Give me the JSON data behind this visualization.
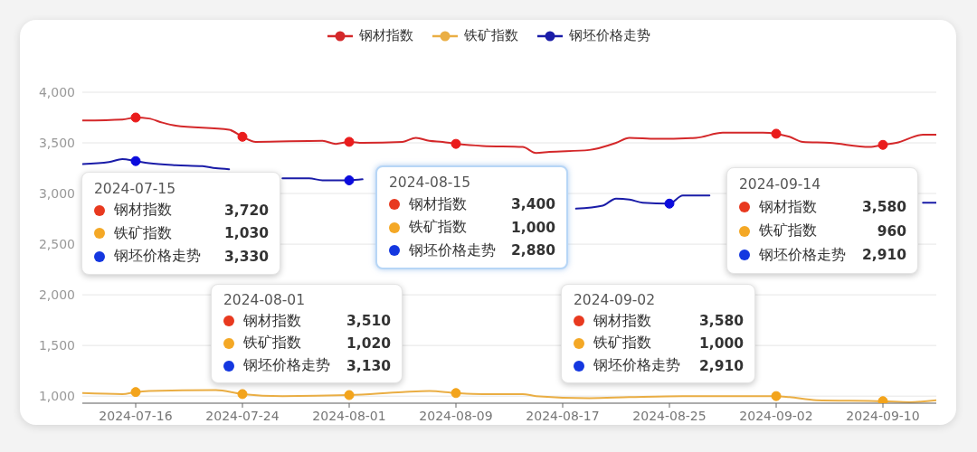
{
  "chart_data": {
    "type": "line",
    "xlim": [
      "2024-07-12",
      "2024-09-14"
    ],
    "xticks": [
      "2024-07-16",
      "2024-07-24",
      "2024-08-01",
      "2024-08-09",
      "2024-08-17",
      "2024-08-25",
      "2024-09-02",
      "2024-09-10"
    ],
    "ylim": [
      930,
      4000
    ],
    "yticks": [
      {
        "value": 1000,
        "label": "1,000"
      },
      {
        "value": 1500,
        "label": "1,500"
      },
      {
        "value": 2000,
        "label": "2,000"
      },
      {
        "value": 2500,
        "label": "2,500"
      },
      {
        "value": 3000,
        "label": "3,000"
      },
      {
        "value": 3500,
        "label": "3,500"
      },
      {
        "value": 4000,
        "label": "4,000"
      }
    ],
    "grid": "y",
    "legend": "top",
    "series": [
      {
        "name": "钢材指数",
        "color": "#d4282a",
        "x": [
          "2024-07-12",
          "2024-07-15",
          "2024-07-16",
          "2024-07-17",
          "2024-07-18",
          "2024-07-19",
          "2024-07-23",
          "2024-07-24",
          "2024-07-25",
          "2024-07-30",
          "2024-07-31",
          "2024-08-01",
          "2024-08-02",
          "2024-08-05",
          "2024-08-06",
          "2024-08-07",
          "2024-08-08",
          "2024-08-09",
          "2024-08-11",
          "2024-08-14",
          "2024-08-15",
          "2024-08-16",
          "2024-08-19",
          "2024-08-21",
          "2024-08-22",
          "2024-08-24",
          "2024-08-27",
          "2024-08-29",
          "2024-09-01",
          "2024-09-02",
          "2024-09-03",
          "2024-09-04",
          "2024-09-06",
          "2024-09-09",
          "2024-09-10",
          "2024-09-11",
          "2024-09-13",
          "2024-09-14"
        ],
        "values": [
          3720,
          3730,
          3750,
          3740,
          3700,
          3670,
          3630,
          3560,
          3510,
          3520,
          3490,
          3510,
          3500,
          3510,
          3550,
          3520,
          3510,
          3490,
          3470,
          3460,
          3400,
          3410,
          3430,
          3500,
          3550,
          3540,
          3550,
          3600,
          3600,
          3590,
          3560,
          3510,
          3500,
          3460,
          3480,
          3500,
          3580,
          3580
        ]
      },
      {
        "name": "铁矿指数",
        "color": "#eaae44",
        "x": [
          "2024-07-12",
          "2024-07-15",
          "2024-07-16",
          "2024-07-17",
          "2024-07-22",
          "2024-07-24",
          "2024-07-27",
          "2024-08-01",
          "2024-08-05",
          "2024-08-07",
          "2024-08-09",
          "2024-08-11",
          "2024-08-14",
          "2024-08-15",
          "2024-08-19",
          "2024-08-22",
          "2024-08-26",
          "2024-09-01",
          "2024-09-02",
          "2024-09-03",
          "2024-09-05",
          "2024-09-10",
          "2024-09-12",
          "2024-09-14"
        ],
        "values": [
          1030,
          1020,
          1040,
          1050,
          1060,
          1020,
          1000,
          1010,
          1040,
          1050,
          1030,
          1020,
          1020,
          1000,
          980,
          990,
          1000,
          1000,
          1000,
          990,
          960,
          950,
          940,
          960
        ]
      },
      {
        "name": "钢坯价格走势",
        "color": "#1a1ca8",
        "x": [
          "2024-07-12",
          "2024-07-14",
          "2024-07-15",
          "2024-07-16",
          "2024-07-17",
          "2024-07-19",
          "2024-07-21",
          "2024-07-22",
          "2024-07-23",
          "2024-07-25",
          "2024-07-27",
          "2024-07-29",
          "2024-07-30",
          "2024-07-31",
          "2024-08-01",
          "2024-08-02",
          "2024-08-10",
          "2024-08-18",
          "2024-08-20",
          "2024-08-21",
          "2024-08-22",
          "2024-08-23",
          "2024-08-25",
          "2024-08-26",
          "2024-08-28",
          "2024-09-05",
          "2024-09-13",
          "2024-09-14"
        ],
        "values": [
          3290,
          3310,
          3340,
          3320,
          3300,
          3280,
          3270,
          3250,
          3240,
          null,
          3150,
          3150,
          3130,
          3130,
          3130,
          3140,
          null,
          2850,
          2880,
          2950,
          2940,
          2910,
          2900,
          2980,
          2980,
          null,
          2910,
          2910
        ]
      },
      {
        "type": "scatter",
        "marker": "circle",
        "color": "#ea1c1c",
        "x": [
          "2024-07-16",
          "2024-07-24",
          "2024-08-01",
          "2024-08-09",
          "2024-09-02",
          "2024-09-10"
        ],
        "values": [
          3750,
          3560,
          3510,
          3490,
          3590,
          3480
        ]
      },
      {
        "type": "scatter",
        "marker": "circle",
        "color": "#f3a41c",
        "x": [
          "2024-07-16",
          "2024-07-24",
          "2024-08-01",
          "2024-08-09",
          "2024-09-02",
          "2024-09-10"
        ],
        "values": [
          1040,
          1020,
          1010,
          1030,
          1000,
          950
        ]
      },
      {
        "type": "scatter",
        "marker": "circle",
        "color": "#0b0bdd",
        "x": [
          "2024-07-16",
          "2024-08-01",
          "2024-08-25"
        ],
        "values": [
          3320,
          3130,
          2900
        ]
      }
    ],
    "annotations": [
      "2024-07-15\n钢材指数\t3,720\n铁矿指数\t1,030\n钢坯价格走势\t3,330",
      "2024-08-01\n钢材指数\t3,510\n铁矿指数\t1,020\n钢坯价格走势\t3,130",
      "2024-08-15\n钢材指数\t3,400\n铁矿指数\t1,000\n钢坯价格走势\t2,880",
      "2024-09-02\n钢材指数\t3,580\n铁矿指数\t1,000\n钢坯价格走势\t2,910",
      "2024-09-14\n钢材指数\t3,580\n铁矿指数\t960\n钢坯价格走势\t2,910"
    ]
  }
}
